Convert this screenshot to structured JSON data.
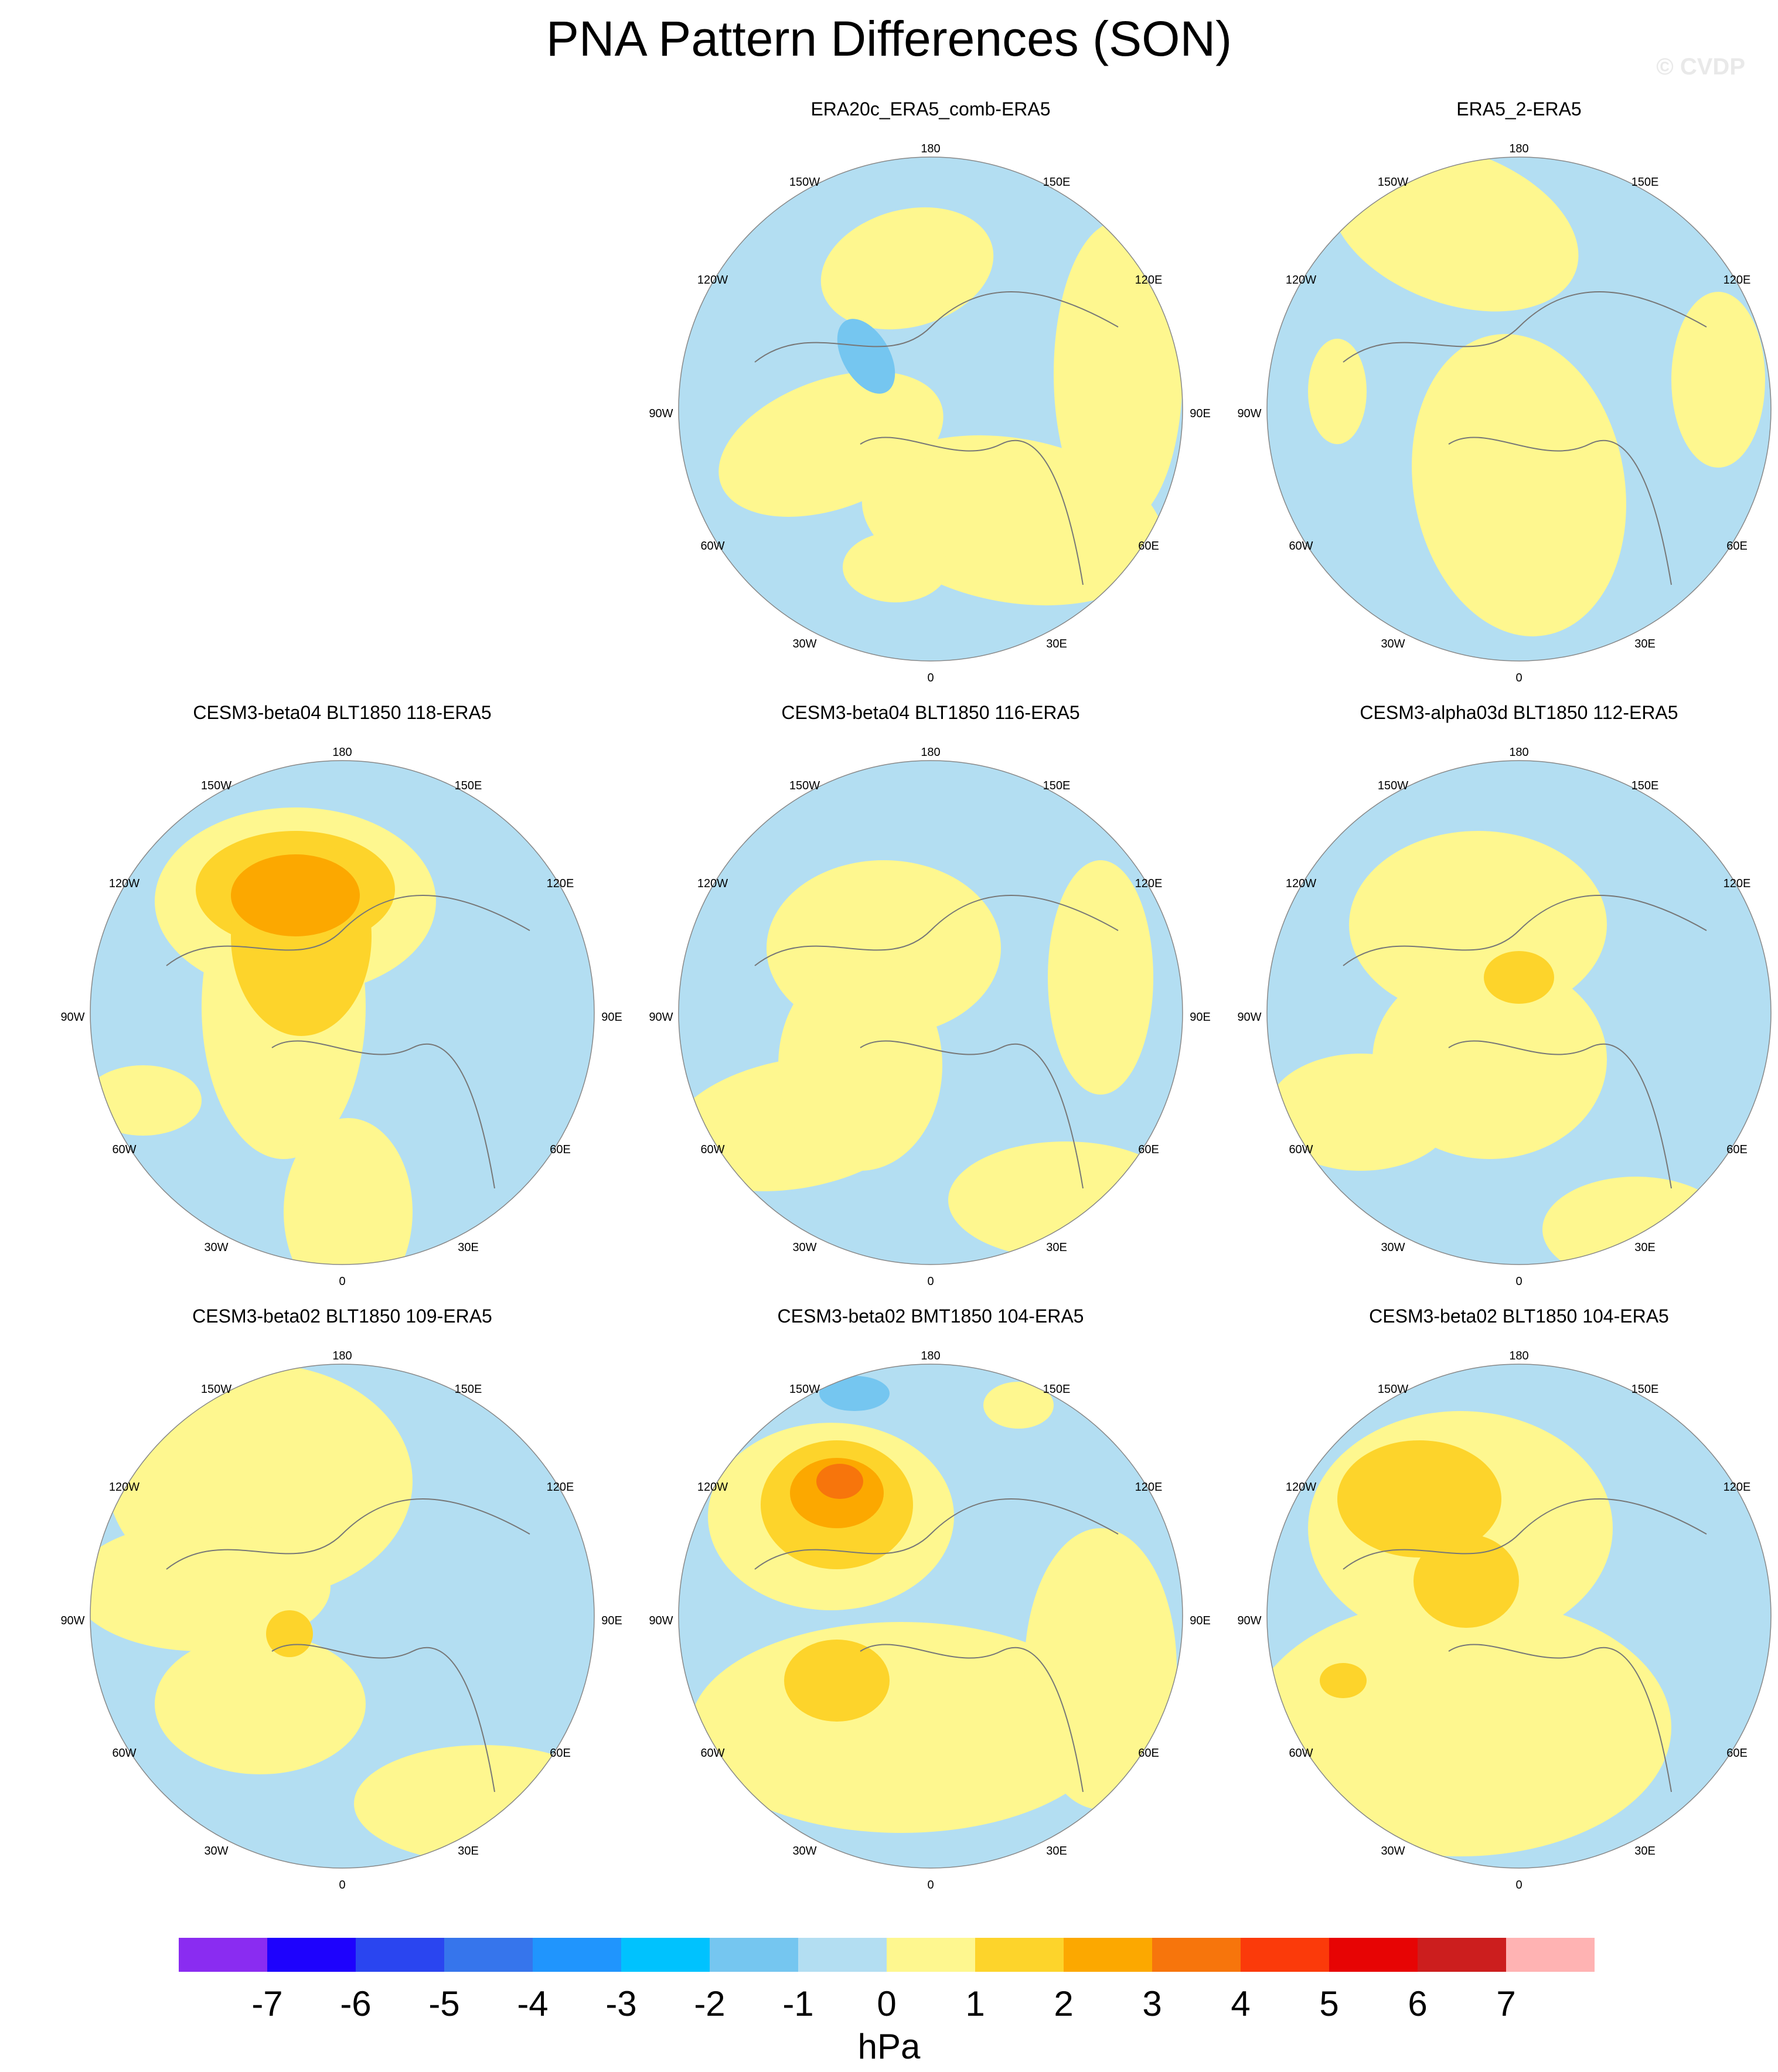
{
  "title": "PNA Pattern Differences (SON)",
  "watermark": "© CVDP",
  "lon_labels": {
    "top": "180",
    "top_left": "150W",
    "top_right": "150E",
    "upper_left": "120W",
    "upper_right": "120E",
    "left": "90W",
    "right": "90E",
    "lower_left": "60W",
    "lower_right": "60E",
    "bottom_left": "30W",
    "bottom_right": "30E",
    "bottom": "0"
  },
  "colors": {
    "ocean_neutral": "#b3def2",
    "land_pos": "#fef78f",
    "pos1": "#fdd42b",
    "pos2": "#fca800",
    "pos3": "#f7750c",
    "neg1": "#75c6f0",
    "coast": "#777777"
  },
  "panels": [
    {
      "title": "ERA20c_ERA5_comb-ERA5",
      "row": 0,
      "col": 1
    },
    {
      "title": "ERA5_2-ERA5",
      "row": 0,
      "col": 2
    },
    {
      "title": "CESM3-beta04 BLT1850 118-ERA5",
      "row": 1,
      "col": 0
    },
    {
      "title": "CESM3-beta04 BLT1850 116-ERA5",
      "row": 1,
      "col": 1
    },
    {
      "title": "CESM3-alpha03d BLT1850 112-ERA5",
      "row": 1,
      "col": 2
    },
    {
      "title": "CESM3-beta02 BLT1850 109-ERA5",
      "row": 2,
      "col": 0
    },
    {
      "title": "CESM3-beta02 BMT1850 104-ERA5",
      "row": 2,
      "col": 1
    },
    {
      "title": "CESM3-beta02 BLT1850 104-ERA5",
      "row": 2,
      "col": 2
    }
  ],
  "colorbar": {
    "colors": [
      "#8a2cf1",
      "#1e02fd",
      "#2a45f0",
      "#3675ec",
      "#2095fd",
      "#00c2fe",
      "#75c6f0",
      "#b3def2",
      "#fef78f",
      "#fdd42b",
      "#fca800",
      "#f7750c",
      "#fb3a0a",
      "#e70404",
      "#cc1e1e",
      "#ffb3b3"
    ],
    "ticks": [
      "-7",
      "-6",
      "-5",
      "-4",
      "-3",
      "-2",
      "-1",
      "0",
      "1",
      "2",
      "3",
      "4",
      "5",
      "6",
      "7"
    ],
    "units": "hPa"
  }
}
